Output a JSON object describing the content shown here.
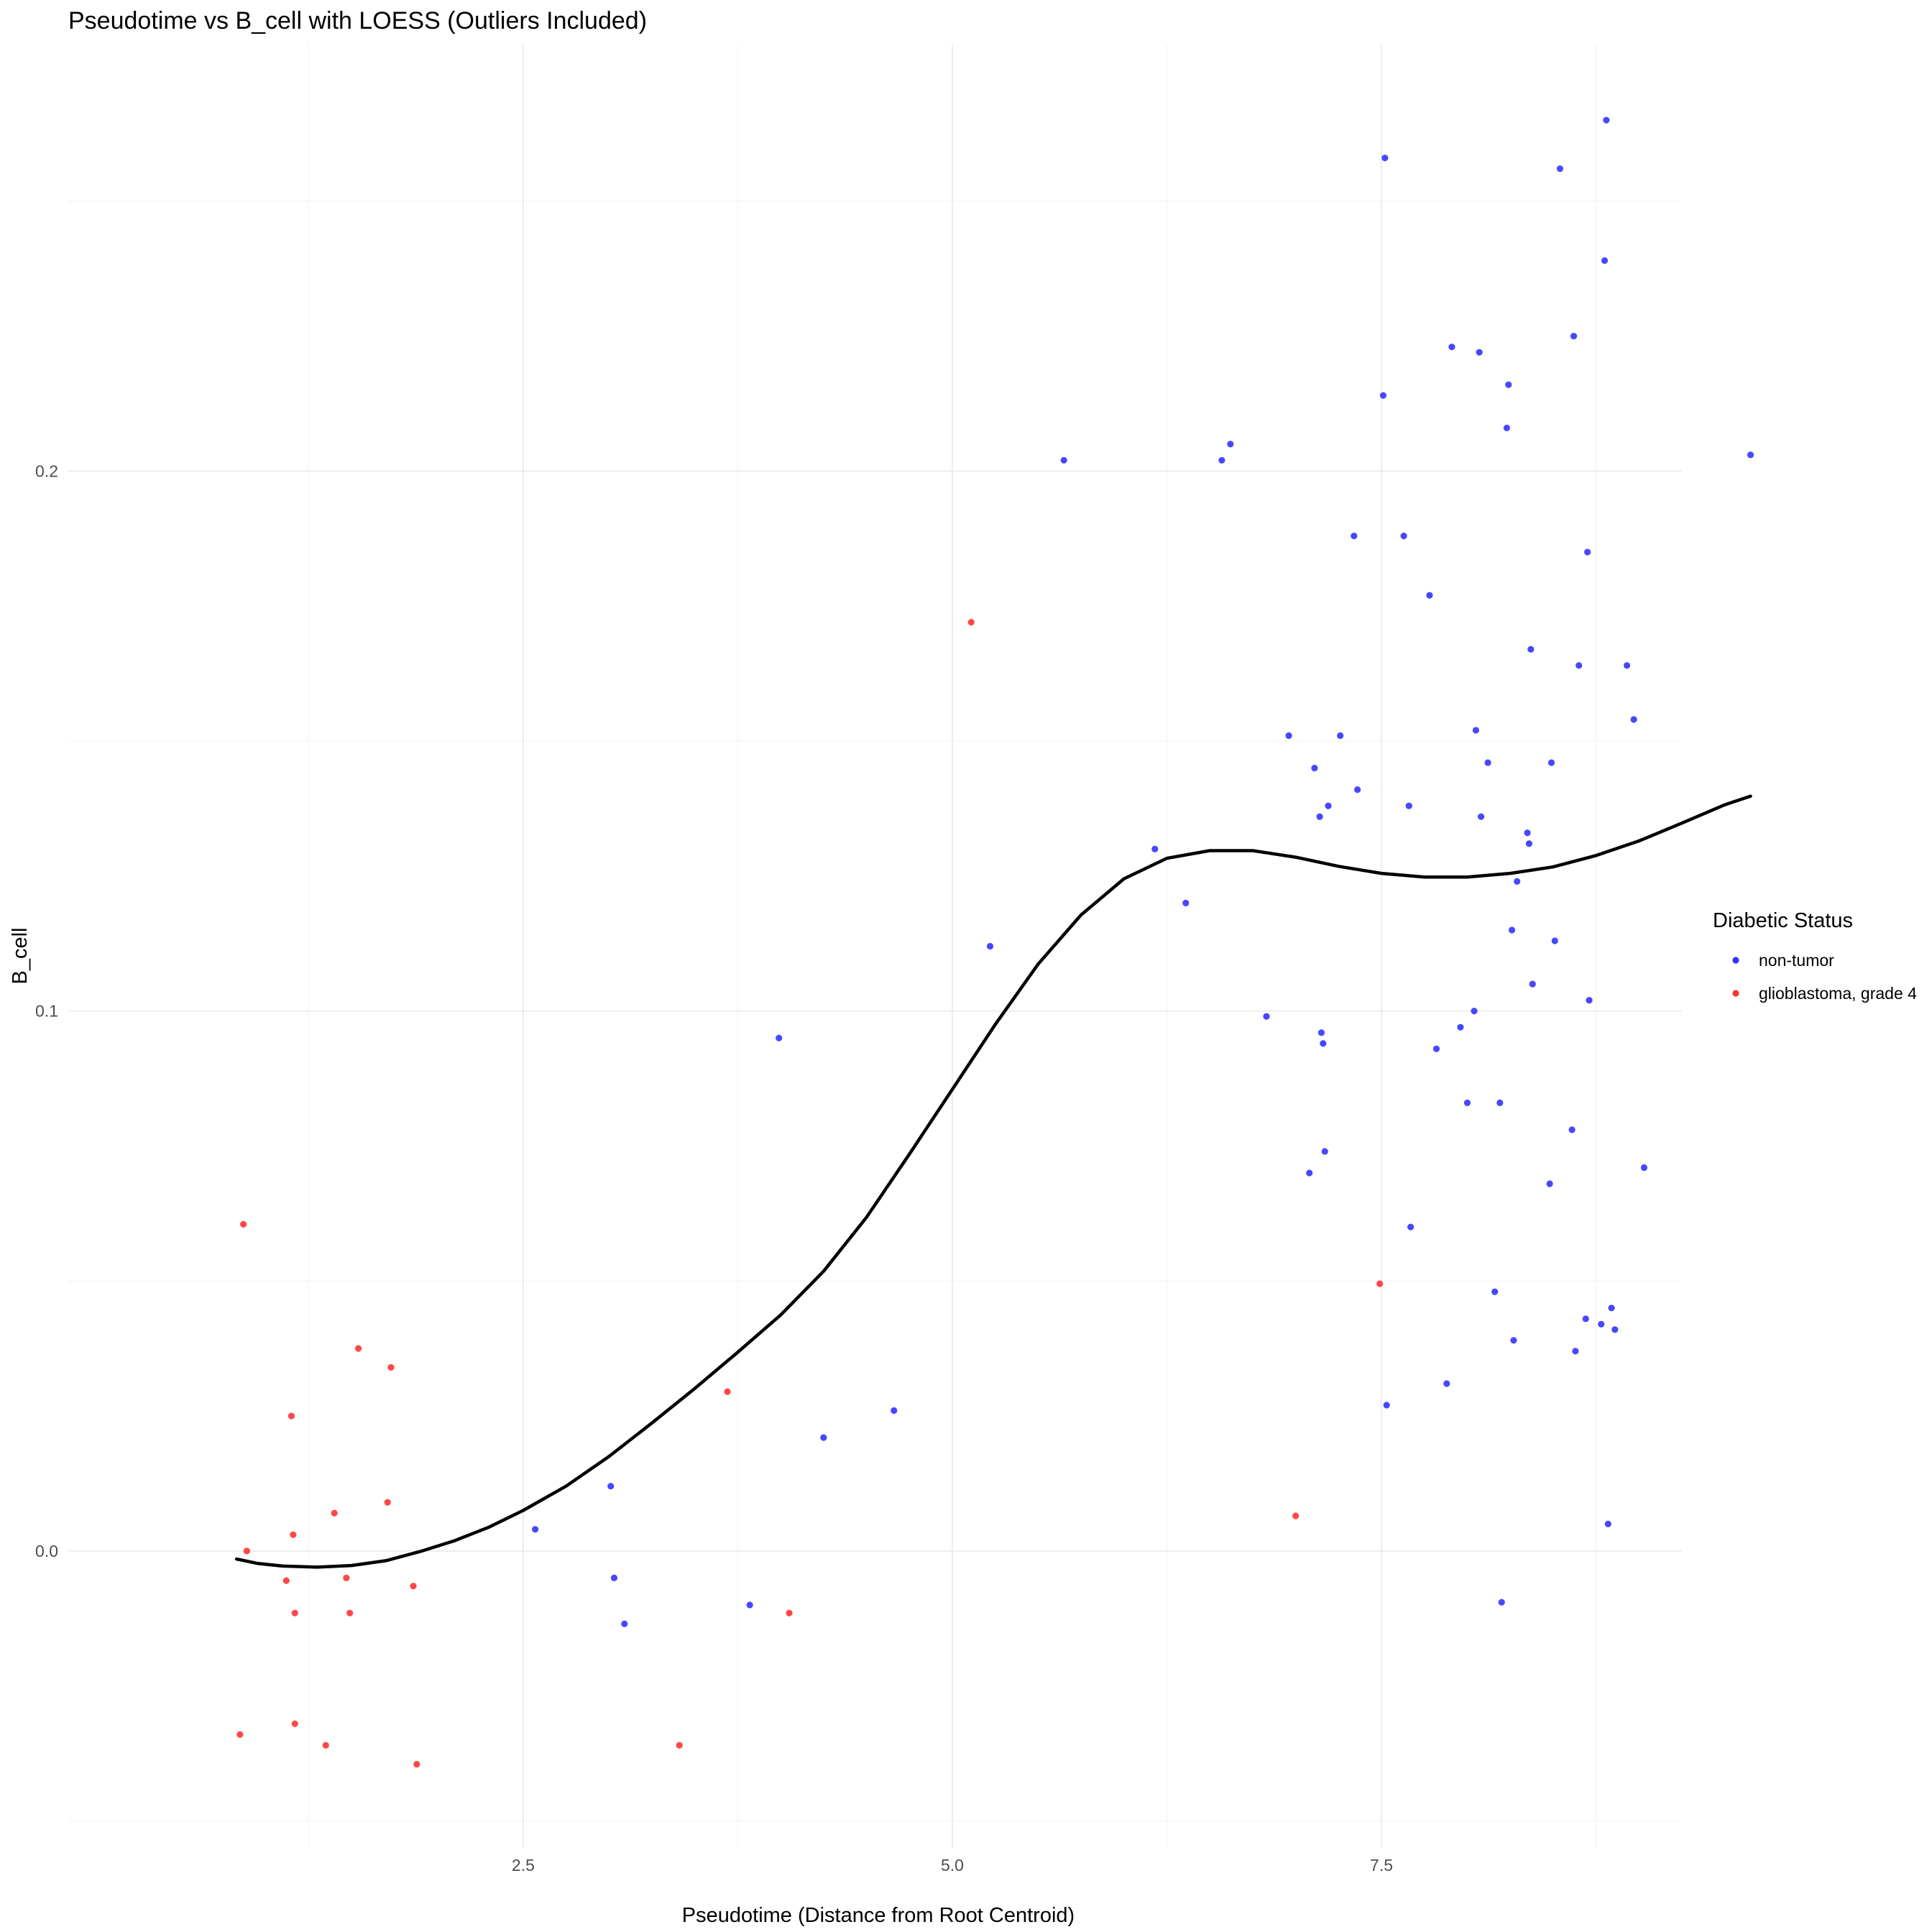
{
  "chart_data": {
    "type": "scatter",
    "title": "Pseudotime vs B_cell with LOESS (Outliers Included)",
    "xlabel": "Pseudotime (Distance from Root Centroid)",
    "ylabel": "B_cell",
    "xlim": [
      -0.15,
      9.25
    ],
    "ylim": [
      -0.055,
      0.279
    ],
    "x_ticks": [
      2.5,
      5.0,
      7.5
    ],
    "x_tick_labels": [
      "2.5",
      "5.0",
      "7.5"
    ],
    "x_minor": [
      1.25,
      3.75,
      6.25,
      8.75
    ],
    "y_ticks": [
      0.0,
      0.1,
      0.2
    ],
    "y_tick_labels": [
      "0.0",
      "0.1",
      "0.2"
    ],
    "y_minor": [
      -0.05,
      0.05,
      0.15,
      0.25
    ],
    "grid": true,
    "legend": {
      "title": "Diabetic Status",
      "position": "right",
      "entries": [
        {
          "label": "non-tumor",
          "color": "#3333ff"
        },
        {
          "label": "glioblastoma, grade 4",
          "color": "#ff3333"
        }
      ]
    },
    "series": [
      {
        "name": "non-tumor",
        "color": "#3333ff",
        "points": [
          [
            2.57,
            0.004
          ],
          [
            3.01,
            0.012
          ],
          [
            3.03,
            -0.005
          ],
          [
            3.09,
            -0.0135
          ],
          [
            3.82,
            -0.01
          ],
          [
            3.99,
            0.095
          ],
          [
            4.25,
            0.021
          ],
          [
            4.66,
            0.026
          ],
          [
            5.22,
            0.112
          ],
          [
            5.65,
            0.202
          ],
          [
            6.18,
            0.13
          ],
          [
            6.36,
            0.12
          ],
          [
            6.57,
            0.202
          ],
          [
            6.62,
            0.205
          ],
          [
            6.83,
            0.099
          ],
          [
            6.96,
            0.151
          ],
          [
            7.08,
            0.07
          ],
          [
            7.11,
            0.145
          ],
          [
            7.14,
            0.136
          ],
          [
            7.15,
            0.096
          ],
          [
            7.16,
            0.094
          ],
          [
            7.17,
            0.074
          ],
          [
            7.19,
            0.138
          ],
          [
            7.26,
            0.151
          ],
          [
            7.34,
            0.188
          ],
          [
            7.36,
            0.141
          ],
          [
            7.51,
            0.214
          ],
          [
            7.52,
            0.258
          ],
          [
            7.53,
            0.027
          ],
          [
            7.63,
            0.188
          ],
          [
            7.66,
            0.138
          ],
          [
            7.67,
            0.06
          ],
          [
            7.78,
            0.177
          ],
          [
            7.82,
            0.093
          ],
          [
            7.88,
            0.031
          ],
          [
            7.91,
            0.223
          ],
          [
            7.96,
            0.097
          ],
          [
            8.0,
            0.083
          ],
          [
            8.04,
            0.1
          ],
          [
            8.05,
            0.152
          ],
          [
            8.07,
            0.222
          ],
          [
            8.08,
            0.136
          ],
          [
            8.12,
            0.146
          ],
          [
            8.16,
            0.048
          ],
          [
            8.19,
            0.083
          ],
          [
            8.2,
            -0.0095
          ],
          [
            8.23,
            0.208
          ],
          [
            8.24,
            0.216
          ],
          [
            8.26,
            0.115
          ],
          [
            8.27,
            0.039
          ],
          [
            8.29,
            0.124
          ],
          [
            8.35,
            0.133
          ],
          [
            8.36,
            0.131
          ],
          [
            8.37,
            0.167
          ],
          [
            8.38,
            0.105
          ],
          [
            8.48,
            0.068
          ],
          [
            8.49,
            0.146
          ],
          [
            8.51,
            0.113
          ],
          [
            8.54,
            0.256
          ],
          [
            8.61,
            0.078
          ],
          [
            8.62,
            0.225
          ],
          [
            8.63,
            0.037
          ],
          [
            8.65,
            0.164
          ],
          [
            8.69,
            0.043
          ],
          [
            8.7,
            0.185
          ],
          [
            8.71,
            0.102
          ],
          [
            8.78,
            0.042
          ],
          [
            8.8,
            0.239
          ],
          [
            8.81,
            0.265
          ],
          [
            8.82,
            0.005
          ],
          [
            8.84,
            0.045
          ],
          [
            8.86,
            0.041
          ],
          [
            8.93,
            0.164
          ],
          [
            8.97,
            0.154
          ],
          [
            9.03,
            0.071
          ],
          [
            9.65,
            0.203
          ]
        ]
      },
      {
        "name": "glioblastoma, grade 4",
        "color": "#ff3333",
        "points": [
          [
            0.85,
            -0.034
          ],
          [
            0.87,
            0.0605
          ],
          [
            0.89,
            0.0
          ],
          [
            1.12,
            -0.0055
          ],
          [
            1.15,
            0.025
          ],
          [
            1.16,
            0.003
          ],
          [
            1.17,
            -0.0115
          ],
          [
            1.17,
            -0.032
          ],
          [
            1.35,
            -0.036
          ],
          [
            1.4,
            0.007
          ],
          [
            1.47,
            -0.005
          ],
          [
            1.49,
            -0.0115
          ],
          [
            1.54,
            0.0375
          ],
          [
            1.71,
            0.009
          ],
          [
            1.73,
            0.034
          ],
          [
            1.86,
            -0.0065
          ],
          [
            1.88,
            -0.0395
          ],
          [
            3.41,
            -0.036
          ],
          [
            3.69,
            0.0295
          ],
          [
            4.05,
            -0.0115
          ],
          [
            5.11,
            0.172
          ],
          [
            7.0,
            0.0065
          ],
          [
            7.49,
            0.0495
          ]
        ]
      }
    ],
    "loess": [
      [
        0.83,
        -0.0015
      ],
      [
        0.95,
        -0.0023
      ],
      [
        1.1,
        -0.0028
      ],
      [
        1.3,
        -0.003
      ],
      [
        1.5,
        -0.0027
      ],
      [
        1.7,
        -0.0018
      ],
      [
        1.9,
        -0.0001
      ],
      [
        2.1,
        0.0019
      ],
      [
        2.3,
        0.0044
      ],
      [
        2.5,
        0.0075
      ],
      [
        2.75,
        0.012
      ],
      [
        3.0,
        0.0175
      ],
      [
        3.25,
        0.0237
      ],
      [
        3.5,
        0.0301
      ],
      [
        3.75,
        0.0368
      ],
      [
        4.0,
        0.0437
      ],
      [
        4.25,
        0.0518
      ],
      [
        4.5,
        0.0618
      ],
      [
        4.75,
        0.0735
      ],
      [
        5.0,
        0.0855
      ],
      [
        5.25,
        0.0975
      ],
      [
        5.5,
        0.1087
      ],
      [
        5.75,
        0.1178
      ],
      [
        6.0,
        0.1245
      ],
      [
        6.25,
        0.1283
      ],
      [
        6.5,
        0.1297
      ],
      [
        6.75,
        0.1297
      ],
      [
        7.0,
        0.1285
      ],
      [
        7.25,
        0.1268
      ],
      [
        7.5,
        0.1255
      ],
      [
        7.75,
        0.1248
      ],
      [
        8.0,
        0.1248
      ],
      [
        8.25,
        0.1255
      ],
      [
        8.5,
        0.1267
      ],
      [
        8.75,
        0.1288
      ],
      [
        9.0,
        0.1315
      ],
      [
        9.25,
        0.1348
      ],
      [
        9.5,
        0.1382
      ],
      [
        9.65,
        0.1398
      ]
    ],
    "loess_color": "#000000"
  }
}
